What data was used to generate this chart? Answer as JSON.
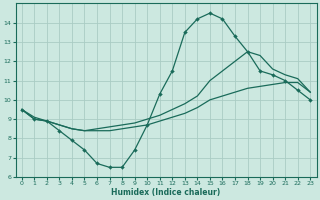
{
  "xlabel": "Humidex (Indice chaleur)",
  "bg_color": "#cce8e0",
  "grid_color": "#aaccc4",
  "line_color": "#1a6b5a",
  "xlim": [
    -0.5,
    23.5
  ],
  "ylim": [
    6,
    15
  ],
  "xticks": [
    0,
    1,
    2,
    3,
    4,
    5,
    6,
    7,
    8,
    9,
    10,
    11,
    12,
    13,
    14,
    15,
    16,
    17,
    18,
    19,
    20,
    21,
    22,
    23
  ],
  "yticks": [
    6,
    7,
    8,
    9,
    10,
    11,
    12,
    13,
    14
  ],
  "curve1_x": [
    0,
    1,
    2,
    3,
    4,
    5,
    6,
    7,
    8,
    9,
    10,
    11,
    12,
    13,
    14,
    15,
    16,
    17,
    18,
    19,
    20,
    21,
    22,
    23
  ],
  "curve1_y": [
    9.5,
    9.0,
    8.9,
    8.4,
    7.9,
    7.4,
    6.7,
    6.5,
    6.5,
    7.4,
    8.7,
    10.3,
    11.5,
    13.5,
    14.2,
    14.5,
    14.2,
    13.3,
    12.5,
    11.5,
    11.3,
    11.0,
    10.5,
    10.0
  ],
  "curve2_x": [
    0,
    1,
    2,
    3,
    4,
    5,
    6,
    7,
    8,
    9,
    10,
    11,
    12,
    13,
    14,
    15,
    16,
    17,
    18,
    19,
    20,
    21,
    22,
    23
  ],
  "curve2_y": [
    9.5,
    9.0,
    8.9,
    8.7,
    8.5,
    8.4,
    8.5,
    8.6,
    8.7,
    8.8,
    9.0,
    9.2,
    9.5,
    9.8,
    10.2,
    11.0,
    11.5,
    12.0,
    12.5,
    12.3,
    11.6,
    11.3,
    11.1,
    10.4
  ],
  "curve3_x": [
    0,
    1,
    2,
    3,
    4,
    5,
    6,
    7,
    8,
    9,
    10,
    11,
    12,
    13,
    14,
    15,
    16,
    17,
    18,
    19,
    20,
    21,
    22,
    23
  ],
  "curve3_y": [
    9.5,
    9.1,
    8.9,
    8.7,
    8.5,
    8.4,
    8.4,
    8.4,
    8.5,
    8.6,
    8.7,
    8.9,
    9.1,
    9.3,
    9.6,
    10.0,
    10.2,
    10.4,
    10.6,
    10.7,
    10.8,
    10.9,
    10.9,
    10.4
  ]
}
